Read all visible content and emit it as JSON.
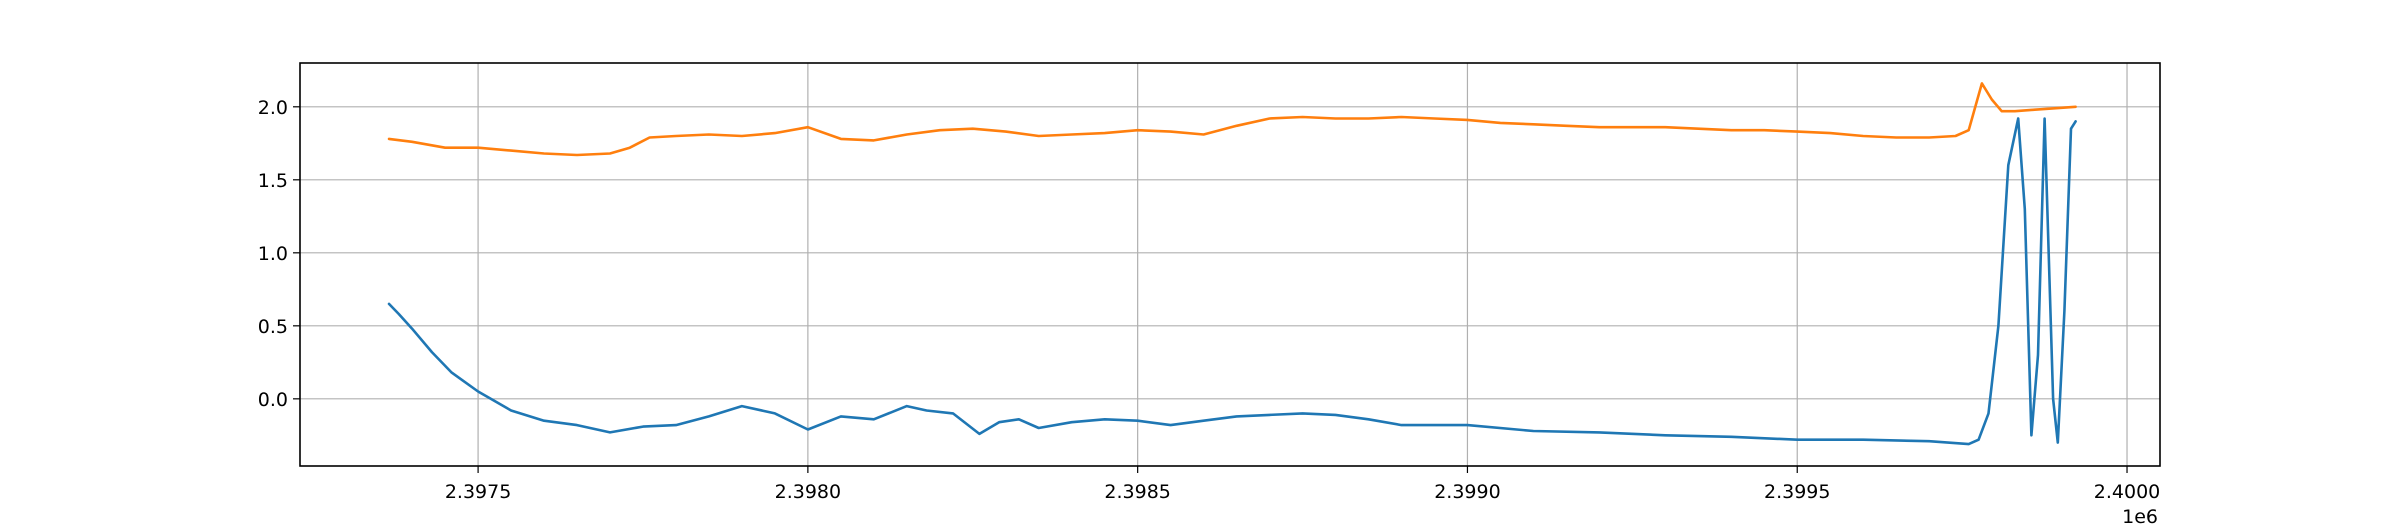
{
  "chart_data": {
    "type": "line",
    "title": "",
    "xlabel": "",
    "ylabel": "",
    "x_offset_label": "1e6",
    "xlim": [
      2397230,
      2400050
    ],
    "ylim": [
      -0.46,
      2.3
    ],
    "grid": true,
    "legend": "none",
    "x_ticks": [
      2397500,
      2398000,
      2398500,
      2399000,
      2399500,
      2400000
    ],
    "x_tick_labels": [
      "2.3975",
      "2.3980",
      "2.3985",
      "2.3990",
      "2.3995",
      "2.4000"
    ],
    "y_ticks": [
      0.0,
      0.5,
      1.0,
      1.5,
      2.0
    ],
    "y_tick_labels": [
      "0.0",
      "0.5",
      "1.0",
      "1.5",
      "2.0"
    ],
    "series": [
      {
        "color": "#1f77b4",
        "x": [
          2397365,
          2397380,
          2397400,
          2397430,
          2397460,
          2397500,
          2397550,
          2397600,
          2397650,
          2397700,
          2397750,
          2397800,
          2397850,
          2397900,
          2397950,
          2398000,
          2398050,
          2398100,
          2398150,
          2398180,
          2398220,
          2398260,
          2398290,
          2398320,
          2398350,
          2398400,
          2398450,
          2398500,
          2398550,
          2398600,
          2398650,
          2398700,
          2398750,
          2398800,
          2398850,
          2398900,
          2398950,
          2399000,
          2399100,
          2399200,
          2399300,
          2399400,
          2399500,
          2399600,
          2399700,
          2399760,
          2399775,
          2399790,
          2399805,
          2399820,
          2399835,
          2399845,
          2399855,
          2399865,
          2399875,
          2399888,
          2399895,
          2399905,
          2399915,
          2399922
        ],
        "y": [
          0.65,
          0.58,
          0.48,
          0.32,
          0.18,
          0.05,
          -0.08,
          -0.15,
          -0.18,
          -0.23,
          -0.19,
          -0.18,
          -0.12,
          -0.05,
          -0.1,
          -0.21,
          -0.12,
          -0.14,
          -0.05,
          -0.08,
          -0.1,
          -0.24,
          -0.16,
          -0.14,
          -0.2,
          -0.16,
          -0.14,
          -0.15,
          -0.18,
          -0.15,
          -0.12,
          -0.11,
          -0.1,
          -0.11,
          -0.14,
          -0.18,
          -0.18,
          -0.18,
          -0.22,
          -0.23,
          -0.25,
          -0.26,
          -0.28,
          -0.28,
          -0.29,
          -0.31,
          -0.28,
          -0.1,
          0.5,
          1.6,
          1.92,
          1.3,
          -0.25,
          0.3,
          1.92,
          0.0,
          -0.3,
          0.6,
          1.85,
          1.9
        ]
      },
      {
        "color": "#ff7f0e",
        "x": [
          2397365,
          2397400,
          2397450,
          2397500,
          2397550,
          2397600,
          2397650,
          2397700,
          2397730,
          2397760,
          2397800,
          2397850,
          2397900,
          2397950,
          2398000,
          2398050,
          2398100,
          2398150,
          2398200,
          2398250,
          2398300,
          2398350,
          2398400,
          2398450,
          2398500,
          2398550,
          2398600,
          2398650,
          2398700,
          2398750,
          2398800,
          2398850,
          2398900,
          2398950,
          2399000,
          2399050,
          2399100,
          2399150,
          2399200,
          2399250,
          2399300,
          2399350,
          2399400,
          2399450,
          2399500,
          2399550,
          2399600,
          2399650,
          2399700,
          2399740,
          2399760,
          2399780,
          2399795,
          2399810,
          2399830,
          2399860,
          2399890,
          2399922
        ],
        "y": [
          1.78,
          1.76,
          1.72,
          1.72,
          1.7,
          1.68,
          1.67,
          1.68,
          1.72,
          1.79,
          1.8,
          1.81,
          1.8,
          1.82,
          1.86,
          1.78,
          1.77,
          1.81,
          1.84,
          1.85,
          1.83,
          1.8,
          1.81,
          1.82,
          1.84,
          1.83,
          1.81,
          1.87,
          1.92,
          1.93,
          1.92,
          1.92,
          1.93,
          1.92,
          1.91,
          1.89,
          1.88,
          1.87,
          1.86,
          1.86,
          1.86,
          1.85,
          1.84,
          1.84,
          1.83,
          1.82,
          1.8,
          1.79,
          1.79,
          1.8,
          1.84,
          2.16,
          2.05,
          1.97,
          1.97,
          1.98,
          1.99,
          2.0
        ]
      }
    ]
  }
}
